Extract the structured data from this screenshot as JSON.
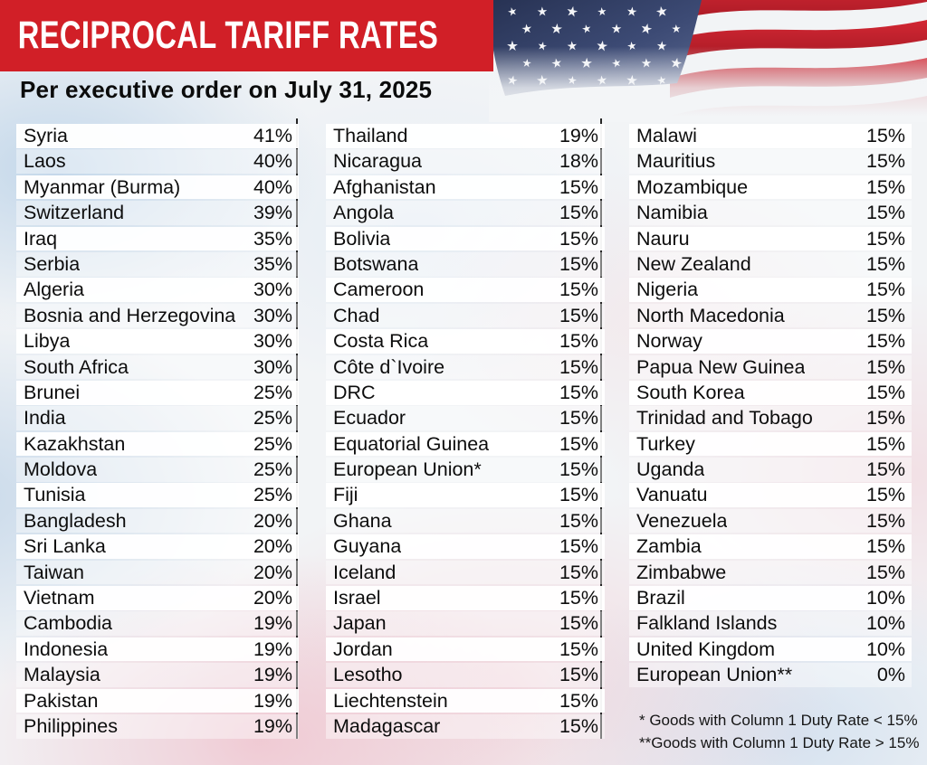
{
  "theme": {
    "banner_red": "#d11f27",
    "divider_color": "#262626",
    "row_opaque": "rgba(255,255,255,0.95)",
    "row_translucent": "rgba(255,255,255,0.42)"
  },
  "icons": [
    {
      "name": "us-flag-image",
      "meaning": "waving United States flag, fades to white at bottom"
    }
  ],
  "chart_data": {
    "type": "table",
    "title": "RECIPROCAL TARIFF RATES",
    "subtitle": "Per executive order on July 31, 2025",
    "value_unit": "reciprocal tariff rate (%)",
    "layout": "three columns of country/rate rows with alternating white bars and thin black vertical dividers",
    "columns": [
      {
        "rows": [
          {
            "country": "Syria",
            "rate": "41%"
          },
          {
            "country": "Laos",
            "rate": "40%"
          },
          {
            "country": "Myanmar (Burma)",
            "rate": "40%"
          },
          {
            "country": "Switzerland",
            "rate": "39%"
          },
          {
            "country": "Iraq",
            "rate": "35%"
          },
          {
            "country": "Serbia",
            "rate": "35%"
          },
          {
            "country": "Algeria",
            "rate": "30%"
          },
          {
            "country": "Bosnia and Herzegovina",
            "rate": "30%"
          },
          {
            "country": "Libya",
            "rate": "30%"
          },
          {
            "country": "South Africa",
            "rate": "30%"
          },
          {
            "country": "Brunei",
            "rate": "25%"
          },
          {
            "country": "India",
            "rate": "25%"
          },
          {
            "country": "Kazakhstan",
            "rate": "25%"
          },
          {
            "country": "Moldova",
            "rate": "25%"
          },
          {
            "country": "Tunisia",
            "rate": "25%"
          },
          {
            "country": "Bangladesh",
            "rate": "20%"
          },
          {
            "country": "Sri Lanka",
            "rate": "20%"
          },
          {
            "country": "Taiwan",
            "rate": "20%"
          },
          {
            "country": "Vietnam",
            "rate": "20%"
          },
          {
            "country": "Cambodia",
            "rate": "19%"
          },
          {
            "country": "Indonesia",
            "rate": "19%"
          },
          {
            "country": "Malaysia",
            "rate": "19%"
          },
          {
            "country": "Pakistan",
            "rate": "19%"
          },
          {
            "country": "Philippines",
            "rate": "19%"
          }
        ]
      },
      {
        "rows": [
          {
            "country": "Thailand",
            "rate": "19%"
          },
          {
            "country": "Nicaragua",
            "rate": "18%"
          },
          {
            "country": "Afghanistan",
            "rate": "15%"
          },
          {
            "country": "Angola",
            "rate": "15%"
          },
          {
            "country": "Bolivia",
            "rate": "15%"
          },
          {
            "country": "Botswana",
            "rate": "15%"
          },
          {
            "country": "Cameroon",
            "rate": "15%"
          },
          {
            "country": "Chad",
            "rate": "15%"
          },
          {
            "country": "Costa Rica",
            "rate": "15%"
          },
          {
            "country": "Côte d`Ivoire",
            "rate": "15%"
          },
          {
            "country": "DRC",
            "rate": "15%"
          },
          {
            "country": "Ecuador",
            "rate": "15%"
          },
          {
            "country": "Equatorial Guinea",
            "rate": "15%"
          },
          {
            "country": "European Union*",
            "rate": "15%"
          },
          {
            "country": "Fiji",
            "rate": "15%"
          },
          {
            "country": "Ghana",
            "rate": "15%"
          },
          {
            "country": "Guyana",
            "rate": "15%"
          },
          {
            "country": "Iceland",
            "rate": "15%"
          },
          {
            "country": "Israel",
            "rate": "15%"
          },
          {
            "country": "Japan",
            "rate": "15%"
          },
          {
            "country": "Jordan",
            "rate": "15%"
          },
          {
            "country": "Lesotho",
            "rate": "15%"
          },
          {
            "country": "Liechtenstein",
            "rate": "15%"
          },
          {
            "country": "Madagascar",
            "rate": "15%"
          }
        ]
      },
      {
        "rows": [
          {
            "country": "Malawi",
            "rate": "15%"
          },
          {
            "country": "Mauritius",
            "rate": "15%"
          },
          {
            "country": "Mozambique",
            "rate": "15%"
          },
          {
            "country": "Namibia",
            "rate": "15%"
          },
          {
            "country": "Nauru",
            "rate": "15%"
          },
          {
            "country": "New Zealand",
            "rate": "15%"
          },
          {
            "country": "Nigeria",
            "rate": "15%"
          },
          {
            "country": "North Macedonia",
            "rate": "15%"
          },
          {
            "country": "Norway",
            "rate": "15%"
          },
          {
            "country": "Papua New Guinea",
            "rate": "15%"
          },
          {
            "country": "South Korea",
            "rate": "15%"
          },
          {
            "country": "Trinidad and Tobago",
            "rate": "15%"
          },
          {
            "country": "Turkey",
            "rate": "15%"
          },
          {
            "country": "Uganda",
            "rate": "15%"
          },
          {
            "country": "Vanuatu",
            "rate": "15%"
          },
          {
            "country": "Venezuela",
            "rate": "15%"
          },
          {
            "country": "Zambia",
            "rate": "15%"
          },
          {
            "country": "Zimbabwe",
            "rate": "15%"
          },
          {
            "country": "Brazil",
            "rate": "10%"
          },
          {
            "country": "Falkland Islands",
            "rate": "10%"
          },
          {
            "country": "United Kingdom",
            "rate": "10%"
          },
          {
            "country": "European Union**",
            "rate": "0%"
          }
        ]
      }
    ],
    "footnotes": [
      "* Goods with Column 1 Duty Rate < 15%",
      "**Goods with Column 1 Duty Rate > 15%"
    ]
  }
}
